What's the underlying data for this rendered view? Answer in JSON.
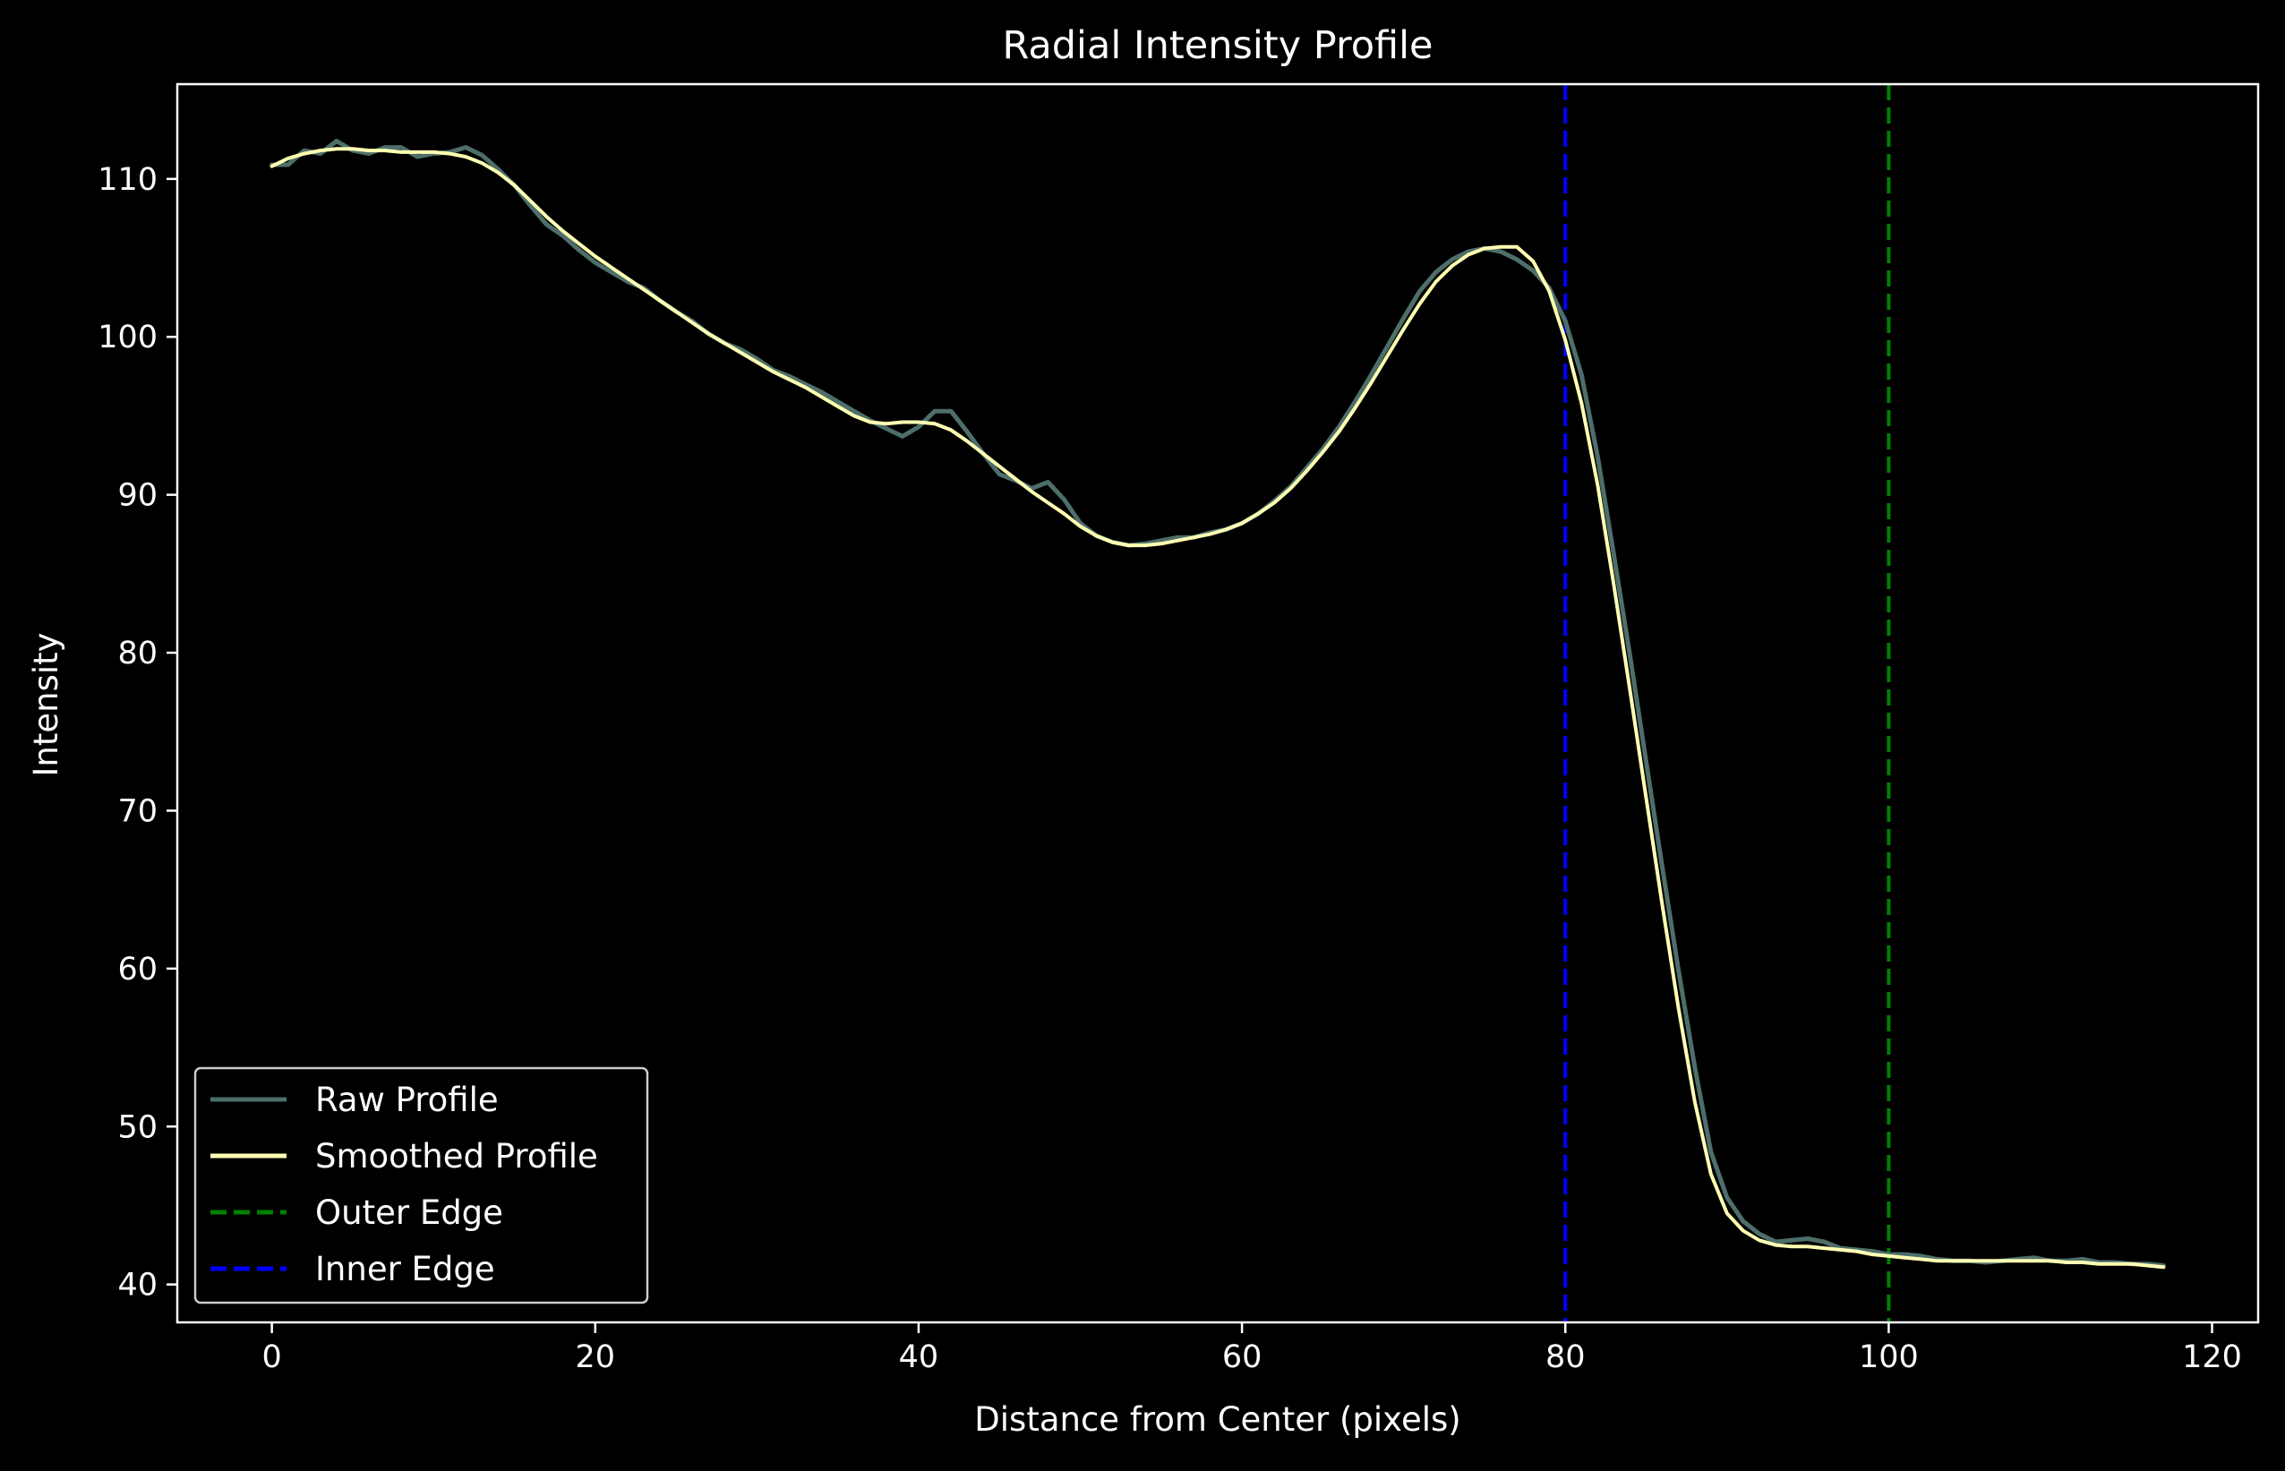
{
  "chart_data": {
    "type": "line",
    "title": "Radial Intensity Profile",
    "xlabel": "Distance from Center (pixels)",
    "ylabel": "Intensity",
    "xlim": [
      -5.85,
      122.85
    ],
    "ylim": [
      37.6,
      116.0
    ],
    "xticks": [
      0,
      20,
      40,
      60,
      80,
      100,
      120
    ],
    "yticks": [
      40,
      50,
      60,
      70,
      80,
      90,
      100,
      110
    ],
    "grid": false,
    "legend_position": "lower-left",
    "background": "#000000",
    "series": [
      {
        "name": "Raw Profile",
        "color": "#4d6e6a",
        "style": "solid",
        "x": [
          0,
          1,
          2,
          3,
          4,
          5,
          6,
          7,
          8,
          9,
          10,
          11,
          12,
          13,
          14,
          15,
          16,
          17,
          18,
          19,
          20,
          21,
          22,
          23,
          24,
          25,
          26,
          27,
          28,
          29,
          30,
          31,
          32,
          33,
          34,
          35,
          36,
          37,
          38,
          39,
          40,
          41,
          42,
          43,
          44,
          45,
          46,
          47,
          48,
          49,
          50,
          51,
          52,
          53,
          54,
          55,
          56,
          57,
          58,
          59,
          60,
          61,
          62,
          63,
          64,
          65,
          66,
          67,
          68,
          69,
          70,
          71,
          72,
          73,
          74,
          75,
          76,
          77,
          78,
          79,
          80,
          81,
          82,
          83,
          84,
          85,
          86,
          87,
          88,
          89,
          90,
          91,
          92,
          93,
          94,
          95,
          96,
          97,
          98,
          99,
          100,
          101,
          102,
          103,
          104,
          105,
          106,
          107,
          108,
          109,
          110,
          111,
          112,
          113,
          114,
          115,
          116,
          117
        ],
        "values": [
          110.9,
          110.9,
          111.8,
          111.6,
          112.4,
          111.8,
          111.6,
          112.0,
          112.0,
          111.4,
          111.6,
          111.7,
          112.0,
          111.5,
          110.6,
          109.6,
          108.3,
          107.1,
          106.4,
          105.5,
          104.7,
          104.1,
          103.5,
          103.1,
          102.3,
          101.6,
          101.0,
          100.2,
          99.6,
          99.2,
          98.6,
          97.9,
          97.5,
          97.0,
          96.5,
          95.9,
          95.3,
          94.7,
          94.2,
          93.7,
          94.3,
          95.3,
          95.3,
          94.0,
          92.6,
          91.3,
          90.9,
          90.4,
          90.8,
          89.7,
          88.2,
          87.4,
          87.0,
          86.8,
          86.9,
          87.1,
          87.3,
          87.3,
          87.6,
          87.8,
          88.2,
          88.8,
          89.6,
          90.5,
          91.7,
          92.9,
          94.3,
          95.9,
          97.6,
          99.4,
          101.2,
          102.9,
          104.1,
          104.9,
          105.4,
          105.6,
          105.4,
          104.9,
          104.2,
          103.1,
          101.0,
          97.6,
          92.4,
          86.2,
          79.8,
          73.1,
          66.4,
          59.9,
          53.8,
          48.4,
          45.5,
          44.0,
          43.2,
          42.7,
          42.8,
          42.9,
          42.7,
          42.3,
          42.2,
          42.1,
          41.9,
          41.9,
          41.8,
          41.6,
          41.5,
          41.5,
          41.4,
          41.5,
          41.6,
          41.7,
          41.5,
          41.5,
          41.6,
          41.4,
          41.4,
          41.3,
          41.3,
          41.2
        ]
      },
      {
        "name": "Smoothed Profile",
        "color": "#ffffb3",
        "style": "solid",
        "x": [
          0,
          1,
          2,
          3,
          4,
          5,
          6,
          7,
          8,
          9,
          10,
          11,
          12,
          13,
          14,
          15,
          16,
          17,
          18,
          19,
          20,
          21,
          22,
          23,
          24,
          25,
          26,
          27,
          28,
          29,
          30,
          31,
          32,
          33,
          34,
          35,
          36,
          37,
          38,
          39,
          40,
          41,
          42,
          43,
          44,
          45,
          46,
          47,
          48,
          49,
          50,
          51,
          52,
          53,
          54,
          55,
          56,
          57,
          58,
          59,
          60,
          61,
          62,
          63,
          64,
          65,
          66,
          67,
          68,
          69,
          70,
          71,
          72,
          73,
          74,
          75,
          76,
          77,
          78,
          79,
          80,
          81,
          82,
          83,
          84,
          85,
          86,
          87,
          88,
          89,
          90,
          91,
          92,
          93,
          94,
          95,
          96,
          97,
          98,
          99,
          100,
          101,
          102,
          103,
          104,
          105,
          106,
          107,
          108,
          109,
          110,
          111,
          112,
          113,
          114,
          115,
          116,
          117
        ],
        "values": [
          110.8,
          111.3,
          111.6,
          111.8,
          111.9,
          111.9,
          111.8,
          111.8,
          111.7,
          111.7,
          111.7,
          111.6,
          111.4,
          111.0,
          110.4,
          109.6,
          108.6,
          107.6,
          106.7,
          105.9,
          105.1,
          104.4,
          103.7,
          103.0,
          102.3,
          101.6,
          100.9,
          100.2,
          99.6,
          99.0,
          98.4,
          97.8,
          97.3,
          96.8,
          96.2,
          95.6,
          95.0,
          94.6,
          94.5,
          94.6,
          94.6,
          94.5,
          94.1,
          93.4,
          92.6,
          91.8,
          91.0,
          90.2,
          89.5,
          88.8,
          88.0,
          87.4,
          87.0,
          86.8,
          86.8,
          86.9,
          87.1,
          87.3,
          87.5,
          87.8,
          88.2,
          88.8,
          89.5,
          90.4,
          91.5,
          92.7,
          94.0,
          95.5,
          97.1,
          98.8,
          100.5,
          102.1,
          103.5,
          104.5,
          105.2,
          105.6,
          105.7,
          105.7,
          104.8,
          102.9,
          99.8,
          95.8,
          90.6,
          84.3,
          77.6,
          70.8,
          64.0,
          57.5,
          51.6,
          47.0,
          44.5,
          43.4,
          42.8,
          42.5,
          42.4,
          42.4,
          42.3,
          42.2,
          42.1,
          41.9,
          41.8,
          41.7,
          41.6,
          41.5,
          41.5,
          41.5,
          41.5,
          41.5,
          41.5,
          41.5,
          41.5,
          41.4,
          41.4,
          41.3,
          41.3,
          41.3,
          41.2,
          41.1
        ]
      }
    ],
    "vlines": [
      {
        "name": "Outer Edge",
        "x": 100,
        "color": "#008000",
        "style": "dashed"
      },
      {
        "name": "Inner Edge",
        "x": 80,
        "color": "#0000ff",
        "style": "dashed"
      }
    ]
  }
}
